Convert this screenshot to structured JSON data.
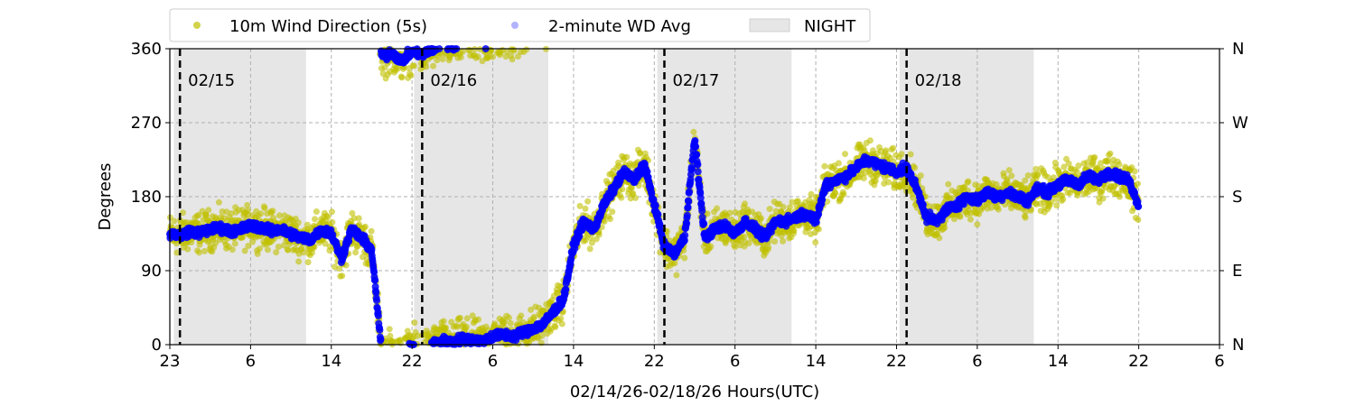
{
  "chart_data": {
    "type": "scatter",
    "title": "",
    "xlabel": "02/14/26-02/18/26  Hours(UTC)",
    "ylabel": "Degrees",
    "ylim": [
      0,
      360
    ],
    "x_units": "hours since 02/14 23:00 UTC",
    "xlim": [
      0,
      104
    ],
    "yticks": [
      0,
      90,
      180,
      270,
      360
    ],
    "ytick_labels": [
      "0",
      "90",
      "180",
      "270",
      "360"
    ],
    "right_yticks": [
      0,
      90,
      180,
      270,
      360
    ],
    "right_ytick_labels": [
      "N",
      "E",
      "S",
      "W",
      "N"
    ],
    "xticks": [
      0,
      8,
      16,
      24,
      32,
      40,
      48,
      56,
      64,
      72,
      80,
      88,
      96,
      104
    ],
    "xtick_labels": [
      "23",
      "6",
      "14",
      "22",
      "6",
      "14",
      "22",
      "6",
      "14",
      "22",
      "6",
      "14",
      "22",
      "6"
    ],
    "grid": true,
    "legend": {
      "placement": "top",
      "entries": [
        "10m Wind Direction (5s)",
        "2-minute WD Avg",
        "NIGHT"
      ]
    },
    "day_markers": [
      {
        "x": 1,
        "label": "02/15"
      },
      {
        "x": 25,
        "label": "02/16"
      },
      {
        "x": 49,
        "label": "02/17"
      },
      {
        "x": 73,
        "label": "02/18"
      }
    ],
    "night_spans": [
      [
        0.4,
        13.5
      ],
      [
        24.2,
        37.5
      ],
      [
        48.3,
        61.6
      ],
      [
        72.3,
        85.6
      ]
    ],
    "series": [
      {
        "name": "2-minute WD Avg",
        "color": "#0000ff",
        "x_start": 0,
        "x_step": 1,
        "values": [
          135,
          133,
          138,
          136,
          140,
          142,
          138,
          140,
          145,
          143,
          138,
          140,
          135,
          130,
          128,
          140,
          135,
          105,
          140,
          130,
          115,
          350,
          355,
          345,
          358,
          352,
          0,
          5,
          2,
          8,
          6,
          4,
          10,
          12,
          10,
          15,
          20,
          25,
          40,
          55,
          120,
          150,
          140,
          170,
          190,
          210,
          200,
          220,
          170,
          120,
          110,
          130,
          250,
          130,
          140,
          145,
          135,
          150,
          140,
          130,
          150,
          150,
          155,
          160,
          150,
          195,
          200,
          205,
          215,
          225,
          220,
          215,
          210,
          215,
          190,
          155,
          150,
          165,
          170,
          180,
          175,
          185,
          180,
          185,
          180,
          175,
          190,
          185,
          195,
          200,
          195,
          205,
          200,
          210,
          205,
          200,
          170
        ]
      },
      {
        "name": "10m Wind Direction (5s)",
        "color": "#bfbf00",
        "follows": "2-minute WD Avg",
        "spread_deg": 35
      }
    ]
  }
}
